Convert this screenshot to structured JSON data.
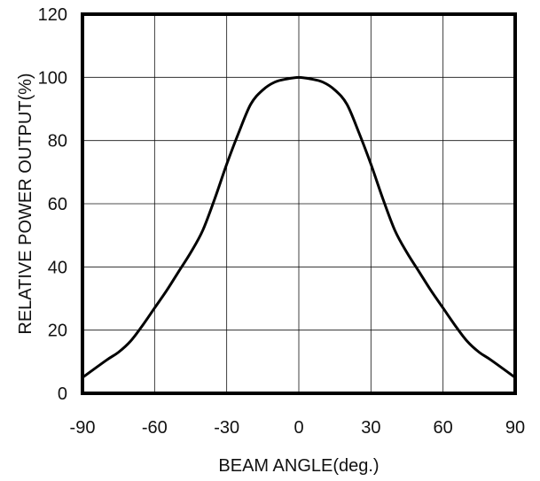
{
  "chart_data": {
    "type": "line",
    "title": "",
    "xlabel": "BEAM ANGLE(deg.)",
    "ylabel": "RELATIVE POWER OUTPUT(%)",
    "xlim": [
      -90,
      90
    ],
    "ylim": [
      0,
      120
    ],
    "xticks": [
      -90,
      -60,
      -30,
      0,
      30,
      60,
      90
    ],
    "yticks": [
      0,
      20,
      40,
      60,
      80,
      100,
      120
    ],
    "grid": true,
    "legend": "none",
    "series": [
      {
        "x": [
          -90,
          -80,
          -75,
          -70,
          -65,
          -60,
          -55,
          -50,
          -45,
          -40,
          -35,
          -30,
          -25,
          -20,
          -15,
          -10,
          -5,
          0,
          5,
          10,
          15,
          20,
          25,
          30,
          35,
          40,
          45,
          50,
          55,
          60,
          65,
          70,
          75,
          80,
          90
        ],
        "y": [
          5,
          10.5,
          13,
          16.5,
          21.5,
          27,
          32.5,
          38.5,
          44.5,
          51.5,
          61.5,
          72.5,
          82.5,
          91.5,
          96,
          98.5,
          99.5,
          100,
          99.5,
          98.5,
          96,
          91.5,
          82.5,
          72.5,
          61.5,
          51.5,
          44.5,
          38.5,
          32.5,
          27,
          21.5,
          16.5,
          13,
          10.5,
          5
        ]
      }
    ]
  }
}
